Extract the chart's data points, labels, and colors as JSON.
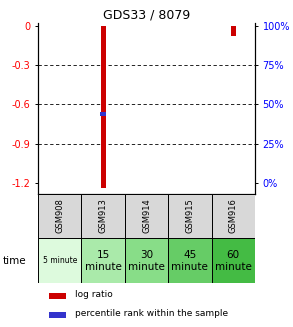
{
  "title": "GDS33 / 8079",
  "samples": [
    "GSM908",
    "GSM913",
    "GSM914",
    "GSM915",
    "GSM916"
  ],
  "time_labels_top": [
    "5 minute",
    "15\nminute",
    "30\nminute",
    "45\nminute",
    "60\nminute"
  ],
  "time_colors": [
    "#ddfadd",
    "#aaeaaa",
    "#88dd88",
    "#66cc66",
    "#44bb44"
  ],
  "gsm_bg": "#d8d8d8",
  "log_ratio_values": [
    null,
    -1.24,
    null,
    null,
    -0.08
  ],
  "percentile_values": [
    null,
    0.44,
    null,
    null,
    null
  ],
  "y_ticks_left": [
    0,
    -0.3,
    -0.6,
    -0.9,
    -1.2
  ],
  "y_ticks_right": [
    100,
    75,
    50,
    25,
    0
  ],
  "bar_color_red": "#cc0000",
  "bar_color_blue": "#3333cc",
  "legend_red": "log ratio",
  "legend_blue": "percentile rank within the sample",
  "bar_width": 0.12,
  "ymin": -1.28,
  "ymax": 0.02
}
